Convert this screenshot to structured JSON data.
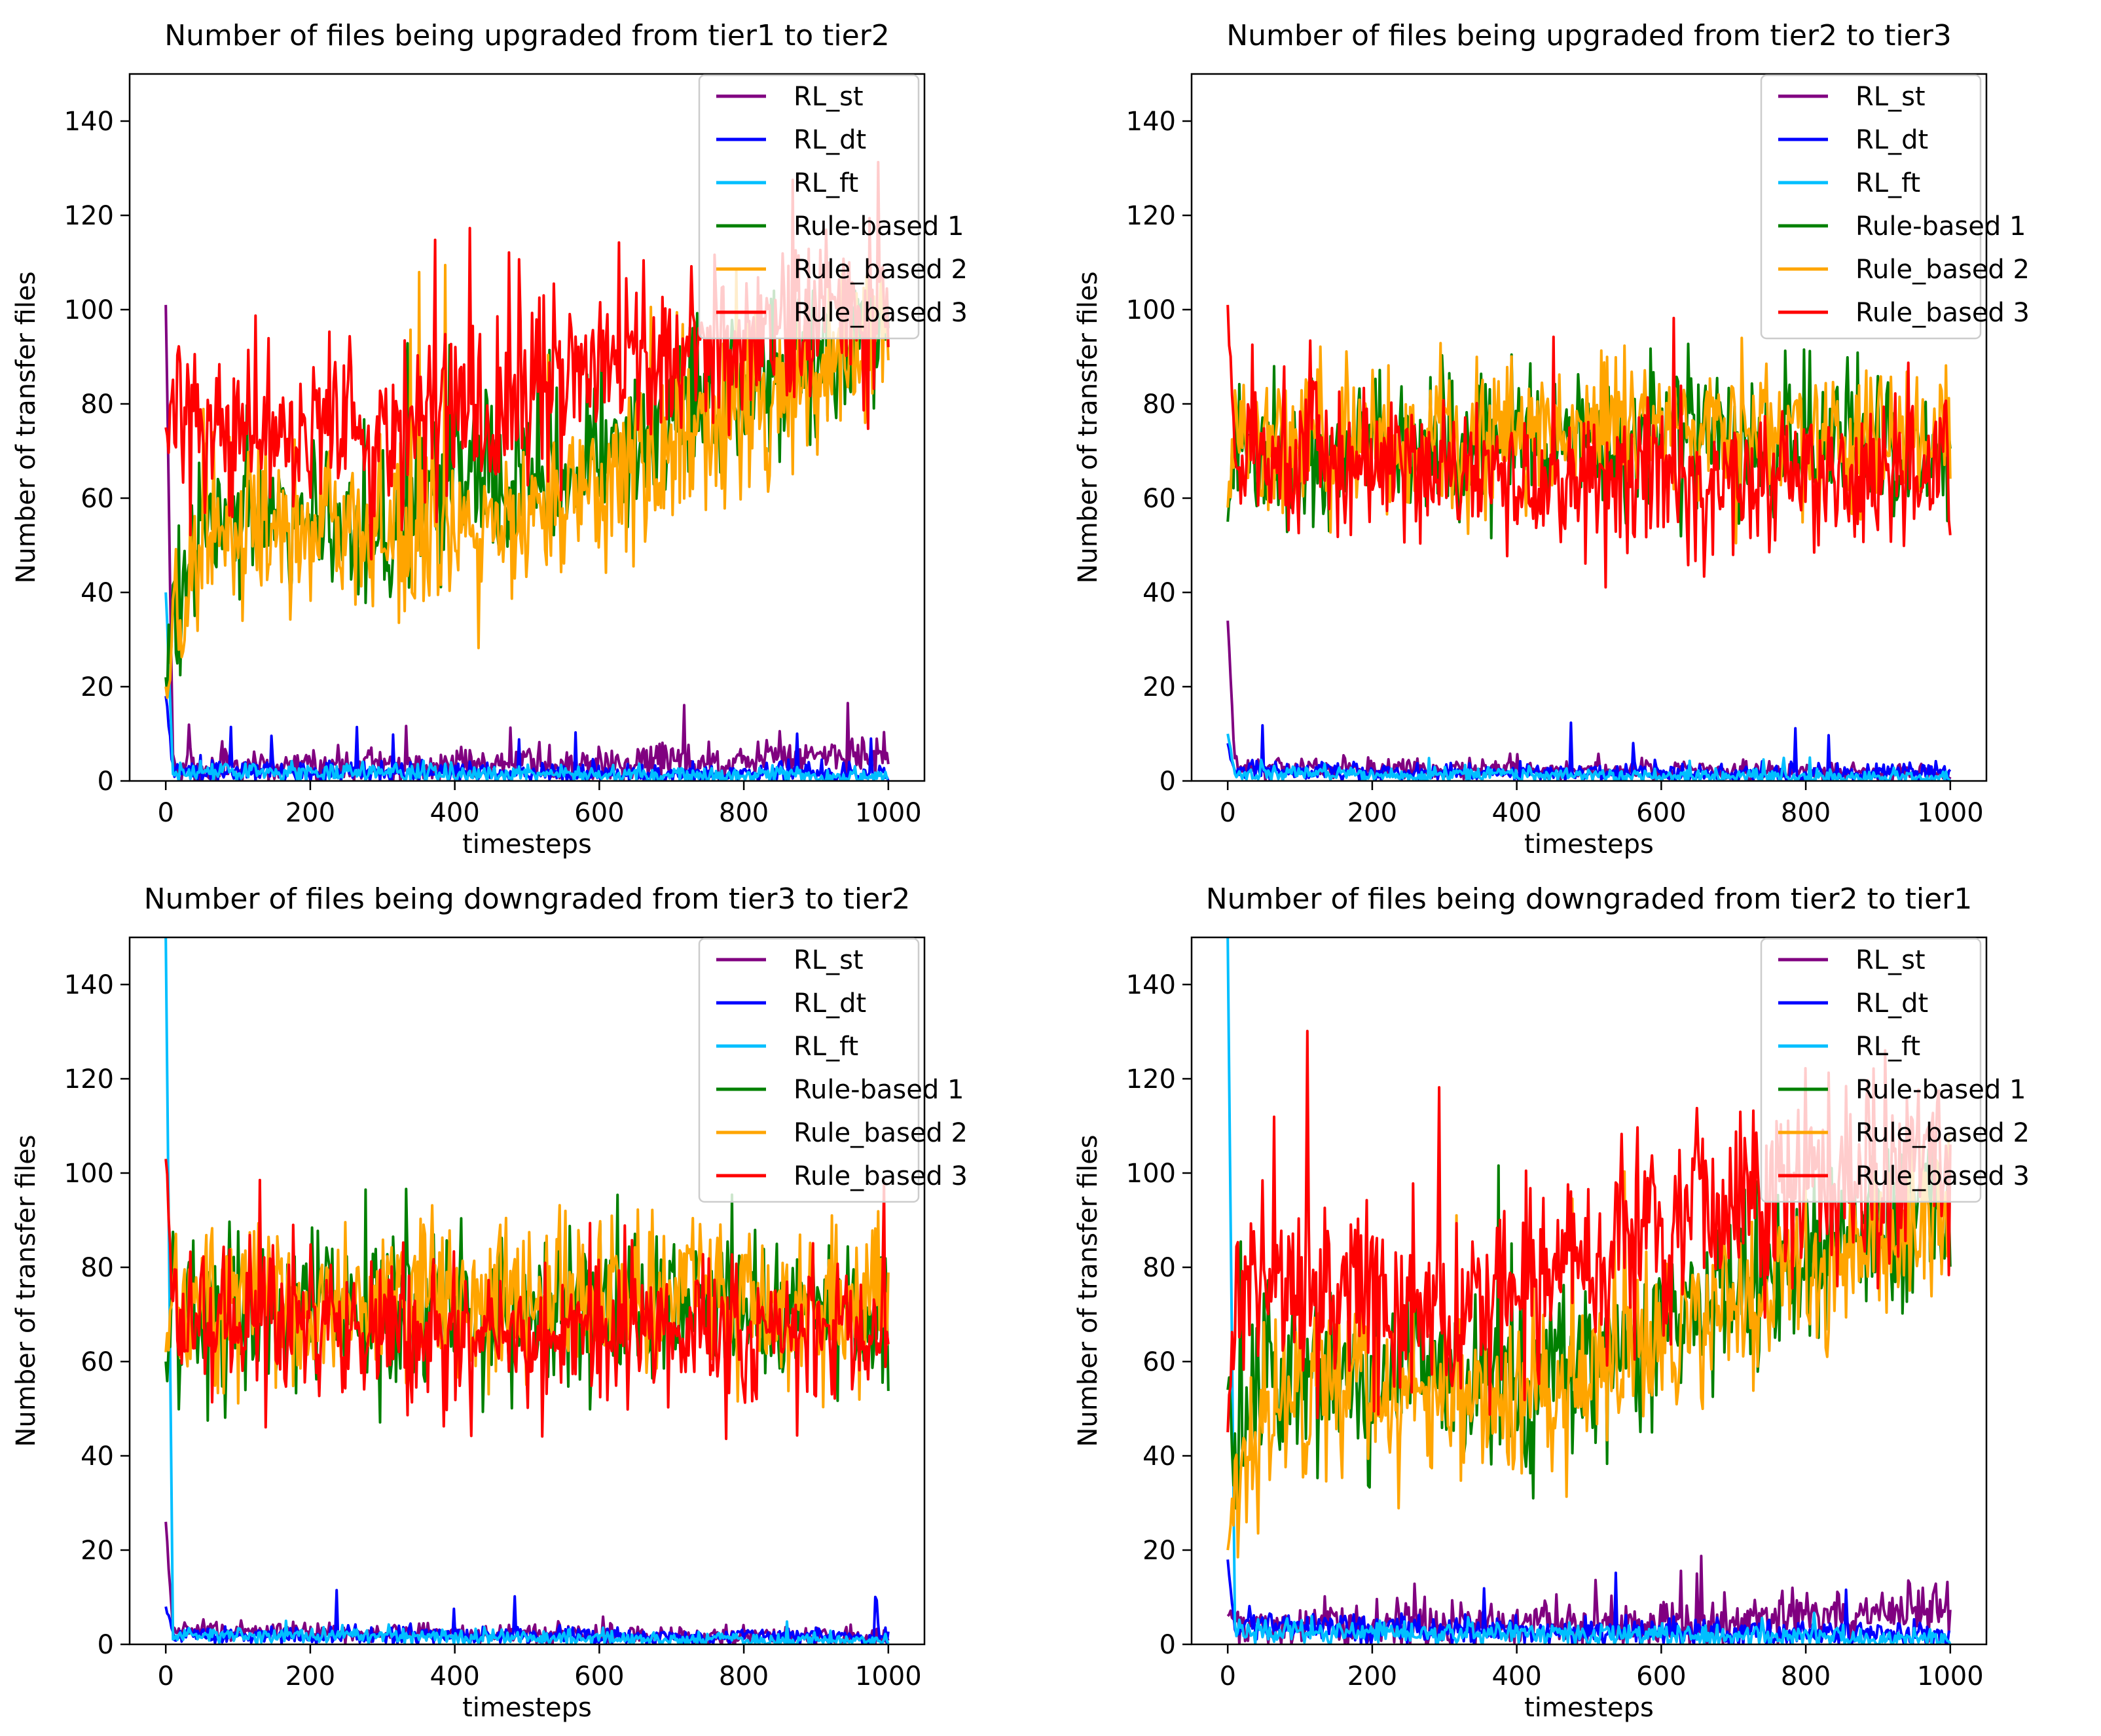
{
  "legend_location": "top-right",
  "series_styles": [
    {
      "name": "RL_st",
      "color": "#800080"
    },
    {
      "name": "RL_dt",
      "color": "#0000ff"
    },
    {
      "name": "RL_ft",
      "color": "#00bfff"
    },
    {
      "name": "Rule-based 1",
      "color": "#008000"
    },
    {
      "name": "Rule_based 2",
      "color": "#ffa500"
    },
    {
      "name": "Rule_based 3",
      "color": "#ff0000"
    }
  ],
  "chart_data": [
    {
      "type": "line",
      "title": "Number of files being upgraded from tier1 to tier2",
      "xlabel": "timesteps",
      "ylabel": "Number of transfer files",
      "xlim": [
        -50,
        1050
      ],
      "ylim": [
        0,
        150
      ],
      "xticks": [
        0,
        200,
        400,
        600,
        800,
        1000
      ],
      "yticks": [
        0,
        20,
        40,
        60,
        80,
        100,
        120,
        140
      ],
      "x_range": [
        0,
        1000
      ],
      "points": 500,
      "series": [
        {
          "name": "RL_st",
          "start": 101,
          "settle": 3,
          "trend": [
            [
              0,
              3
            ],
            [
              600,
              3.5
            ],
            [
              1000,
              6
            ]
          ],
          "noise": 2,
          "spike_max": 17
        },
        {
          "name": "RL_dt",
          "start": 18,
          "settle": 2,
          "trend": [
            [
              0,
              2
            ],
            [
              1000,
              1.5
            ]
          ],
          "noise": 1.2,
          "spike_max": 12
        },
        {
          "name": "RL_ft",
          "start": 40,
          "settle": 1.5,
          "trend": [
            [
              0,
              2
            ],
            [
              1000,
              0.8
            ]
          ],
          "noise": 1.0,
          "spike_max": 4
        },
        {
          "name": "Rule-based 1",
          "start": 22,
          "settle": 45,
          "trend": [
            [
              0,
              25
            ],
            [
              50,
              57
            ],
            [
              300,
              53
            ],
            [
              400,
              60
            ],
            [
              700,
              75
            ],
            [
              1000,
              95
            ]
          ],
          "noise": 9,
          "spike_max": 104
        },
        {
          "name": "Rule_based 2",
          "start": 20,
          "settle": 42,
          "trend": [
            [
              0,
              22
            ],
            [
              50,
              56
            ],
            [
              300,
              52
            ],
            [
              400,
              50
            ],
            [
              700,
              70
            ],
            [
              1000,
              95
            ]
          ],
          "noise": 9,
          "spike_max": 110
        },
        {
          "name": "Rule_based 3",
          "start": 75,
          "settle": 78,
          "trend": [
            [
              0,
              75
            ],
            [
              30,
              75
            ],
            [
              300,
              70
            ],
            [
              400,
              76
            ],
            [
              600,
              88
            ],
            [
              1000,
              100
            ]
          ],
          "noise": 10,
          "spike_max": 133
        }
      ]
    },
    {
      "type": "line",
      "title": "Number of files being upgraded from tier2 to tier3",
      "xlabel": "timesteps",
      "ylabel": "Number of transfer files",
      "xlim": [
        -50,
        1050
      ],
      "ylim": [
        0,
        150
      ],
      "xticks": [
        0,
        200,
        400,
        600,
        800,
        1000
      ],
      "yticks": [
        0,
        20,
        40,
        60,
        80,
        100,
        120,
        140
      ],
      "x_range": [
        0,
        1000
      ],
      "points": 500,
      "series": [
        {
          "name": "RL_st",
          "start": 34,
          "settle": 2,
          "trend": [
            [
              0,
              3
            ],
            [
              1000,
              1.5
            ]
          ],
          "noise": 1.0,
          "spike_max": 6
        },
        {
          "name": "RL_dt",
          "start": 8,
          "settle": 1.5,
          "trend": [
            [
              0,
              2
            ],
            [
              1000,
              1.5
            ]
          ],
          "noise": 1.0,
          "spike_max": 13
        },
        {
          "name": "RL_ft",
          "start": 10,
          "settle": 1,
          "trend": [
            [
              0,
              1.5
            ],
            [
              1000,
              0.8
            ]
          ],
          "noise": 0.8,
          "spike_max": 5
        },
        {
          "name": "Rule-based 1",
          "start": 55,
          "settle": 70,
          "trend": [
            [
              0,
              68
            ],
            [
              500,
              72
            ],
            [
              1000,
              70
            ]
          ],
          "noise": 8,
          "spike_max": 95
        },
        {
          "name": "Rule_based 2",
          "start": 58,
          "settle": 72,
          "trend": [
            [
              0,
              70
            ],
            [
              500,
              74
            ],
            [
              1000,
              72
            ]
          ],
          "noise": 8,
          "spike_max": 94
        },
        {
          "name": "Rule_based 3",
          "start": 101,
          "settle": 66,
          "trend": [
            [
              0,
              70
            ],
            [
              500,
              65
            ],
            [
              1000,
              65
            ]
          ],
          "noise": 8,
          "spike_max": 101
        }
      ]
    },
    {
      "type": "line",
      "title": "Number of files being downgraded from tier3 to tier2",
      "xlabel": "timesteps",
      "ylabel": "Number of transfer files",
      "xlim": [
        -50,
        1050
      ],
      "ylim": [
        0,
        150
      ],
      "xticks": [
        0,
        200,
        400,
        600,
        800,
        1000
      ],
      "yticks": [
        0,
        20,
        40,
        60,
        80,
        100,
        120,
        140
      ],
      "x_range": [
        0,
        1000
      ],
      "points": 500,
      "series": [
        {
          "name": "RL_st",
          "start": 26,
          "settle": 2,
          "trend": [
            [
              0,
              3
            ],
            [
              1000,
              1.5
            ]
          ],
          "noise": 1.0,
          "spike_max": 6
        },
        {
          "name": "RL_dt",
          "start": 8,
          "settle": 1.5,
          "trend": [
            [
              0,
              2
            ],
            [
              1000,
              1.5
            ]
          ],
          "noise": 1.0,
          "spike_max": 12
        },
        {
          "name": "RL_ft",
          "start": 150,
          "settle": 1,
          "trend": [
            [
              0,
              2
            ],
            [
              1000,
              0.8
            ]
          ],
          "noise": 0.8,
          "spike_max": 5
        },
        {
          "name": "Rule-based 1",
          "start": 60,
          "settle": 70,
          "trend": [
            [
              0,
              70
            ],
            [
              500,
              71
            ],
            [
              1000,
              70
            ]
          ],
          "noise": 8,
          "spike_max": 100
        },
        {
          "name": "Rule_based 2",
          "start": 62,
          "settle": 72,
          "trend": [
            [
              0,
              72
            ],
            [
              500,
              74
            ],
            [
              1000,
              72
            ]
          ],
          "noise": 8,
          "spike_max": 96
        },
        {
          "name": "Rule_based 3",
          "start": 103,
          "settle": 66,
          "trend": [
            [
              0,
              70
            ],
            [
              500,
              66
            ],
            [
              1000,
              65
            ]
          ],
          "noise": 8,
          "spike_max": 103
        }
      ]
    },
    {
      "type": "line",
      "title": "Number of files being downgraded from tier2 to tier1",
      "xlabel": "timesteps",
      "ylabel": "Number of transfer files",
      "xlim": [
        -50,
        1050
      ],
      "ylim": [
        0,
        150
      ],
      "xticks": [
        0,
        200,
        400,
        600,
        800,
        1000
      ],
      "yticks": [
        0,
        20,
        40,
        60,
        80,
        100,
        120,
        140
      ],
      "x_range": [
        0,
        1000
      ],
      "points": 500,
      "series": [
        {
          "name": "RL_st",
          "start": 6,
          "settle": 4,
          "trend": [
            [
              0,
              4
            ],
            [
              600,
              4
            ],
            [
              1000,
              8
            ]
          ],
          "noise": 2.5,
          "spike_max": 20
        },
        {
          "name": "RL_dt",
          "start": 18,
          "settle": 3,
          "trend": [
            [
              0,
              4
            ],
            [
              1000,
              2
            ]
          ],
          "noise": 1.5,
          "spike_max": 16
        },
        {
          "name": "RL_ft",
          "start": 150,
          "settle": 2,
          "trend": [
            [
              0,
              3
            ],
            [
              1000,
              1
            ]
          ],
          "noise": 1.2,
          "spike_max": 8
        },
        {
          "name": "Rule-based 1",
          "start": 54,
          "settle": 45,
          "trend": [
            [
              0,
              30
            ],
            [
              50,
              58
            ],
            [
              300,
              60
            ],
            [
              400,
              52
            ],
            [
              700,
              75
            ],
            [
              1000,
              95
            ]
          ],
          "noise": 9,
          "spike_max": 105
        },
        {
          "name": "Rule_based 2",
          "start": 20,
          "settle": 42,
          "trend": [
            [
              0,
              25
            ],
            [
              50,
              52
            ],
            [
              300,
              55
            ],
            [
              400,
              50
            ],
            [
              700,
              72
            ],
            [
              1000,
              95
            ]
          ],
          "noise": 9,
          "spike_max": 110
        },
        {
          "name": "Rule_based 3",
          "start": 45,
          "settle": 78,
          "trend": [
            [
              0,
              70
            ],
            [
              30,
              78
            ],
            [
              300,
              68
            ],
            [
              400,
              75
            ],
            [
              600,
              88
            ],
            [
              1000,
              105
            ]
          ],
          "noise": 10,
          "spike_max": 134
        }
      ]
    }
  ]
}
